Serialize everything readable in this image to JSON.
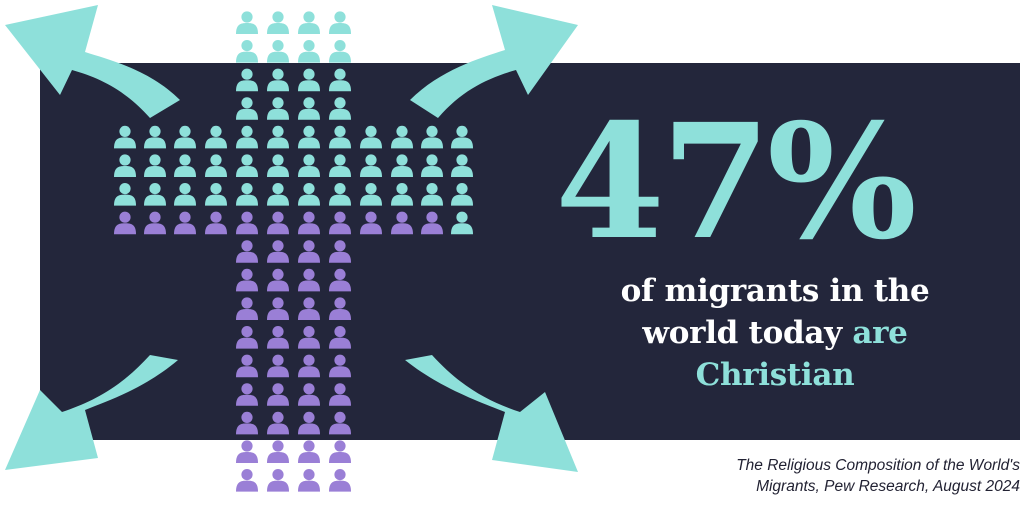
{
  "colors": {
    "panel": "#23263b",
    "accent": "#8ee0da",
    "teal_person": "#8ee0da",
    "purple_person": "#9a7fd6"
  },
  "stat": {
    "value": "47%",
    "line1": "of migrants in the",
    "line2_white": "world today",
    "line2_accent": "are",
    "line3_accent": "Christian"
  },
  "source": {
    "line1": "The Religious Composition of the World's",
    "line2": "Migrants, Pew Research, August 2024"
  },
  "icons": {
    "arrows": [
      "arrow-up-left-icon",
      "arrow-up-right-icon",
      "arrow-down-left-icon",
      "arrow-down-right-icon"
    ],
    "figure": "person-icon"
  },
  "cross_graphic": {
    "christian_share": 0.47,
    "layout": "cross-shaped pictogram of people icons, teal top portion and purple bottom portion"
  }
}
